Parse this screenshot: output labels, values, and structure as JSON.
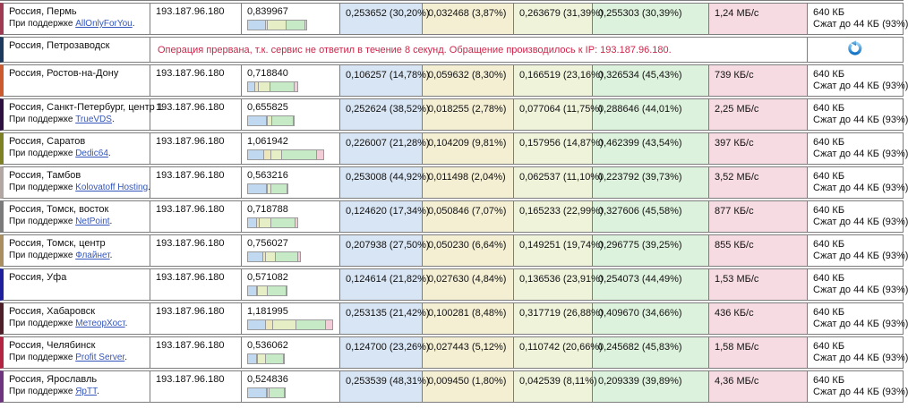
{
  "labels": {
    "support_prefix": "При поддержке",
    "support_suffix": "."
  },
  "colors": {
    "phase_connect_bg": "#d8e5f4",
    "phase_send_bg": "#f4efd2",
    "phase_wait_bg": "#eef3da",
    "phase_download_bg": "#ddf2dc",
    "speed_bg": "#f6dbe2",
    "error_text": "#cf2449",
    "link": "#3355bb",
    "border": "#7d7d7d"
  },
  "table": {
    "rows": [
      {
        "type": "normal",
        "location": "Россия, Пермь",
        "support_link": "AllOnlyForYou",
        "stripe_color": "#9e3a52",
        "ip": "193.187.96.180",
        "total_time": "0,839967",
        "phases": [
          "0,253652 (30,20%)",
          "0,032468 (3,87%)",
          "0,263679 (31,39%)",
          "0,255303 (30,39%)"
        ],
        "speed": "1,24 МБ/с",
        "size": "640 КБ",
        "size_note": "Сжат до 44 КБ (93%)"
      },
      {
        "type": "error",
        "location": "Россия, Петрозаводск",
        "stripe_color": "#1c3a5e",
        "error_text": "Операция прервана, т.к. сервис не ответил в течение 8 секунд. Обращение производилось к IP: 193.187.96.180.",
        "action_icon": "reload"
      },
      {
        "type": "normal",
        "location": "Россия, Ростов-на-Дону",
        "support_link": "",
        "stripe_color": "#cb5a2e",
        "ip": "193.187.96.180",
        "total_time": "0,718840",
        "phases": [
          "0,106257 (14,78%)",
          "0,059632 (8,30%)",
          "0,166519 (23,16%)",
          "0,326534 (45,43%)"
        ],
        "speed": "739 КБ/с",
        "size": "640 КБ",
        "size_note": "Сжат до 44 КБ (93%)"
      },
      {
        "type": "normal",
        "location": "Россия, Санкт-Петербург, центр 1",
        "support_link": "TrueVDS",
        "stripe_color": "#2e1040",
        "ip": "193.187.96.180",
        "total_time": "0,655825",
        "phases": [
          "0,252624 (38,52%)",
          "0,018255 (2,78%)",
          "0,077064 (11,75%)",
          "0,288646 (44,01%)"
        ],
        "speed": "2,25 МБ/с",
        "size": "640 КБ",
        "size_note": "Сжат до 44 КБ (93%)"
      },
      {
        "type": "normal",
        "location": "Россия, Саратов",
        "support_link": "Dedic64",
        "stripe_color": "#7e8026",
        "ip": "193.187.96.180",
        "total_time": "1,061942",
        "phases": [
          "0,226007 (21,28%)",
          "0,104209 (9,81%)",
          "0,157956 (14,87%)",
          "0,462399 (43,54%)"
        ],
        "speed": "397 КБ/с",
        "size": "640 КБ",
        "size_note": "Сжат до 44 КБ (93%)"
      },
      {
        "type": "normal",
        "location": "Россия, Тамбов",
        "support_link": "Kolovatoff Hosting",
        "stripe_color": "#b3a7a3",
        "ip": "193.187.96.180",
        "total_time": "0,563216",
        "phases": [
          "0,253008 (44,92%)",
          "0,011498 (2,04%)",
          "0,062537 (11,10%)",
          "0,223792 (39,73%)"
        ],
        "speed": "3,52 МБ/с",
        "size": "640 КБ",
        "size_note": "Сжат до 44 КБ (93%)"
      },
      {
        "type": "normal",
        "location": "Россия, Томск, восток",
        "support_link": "NetPoint",
        "stripe_color": "#7b7b7b",
        "ip": "193.187.96.180",
        "total_time": "0,718788",
        "phases": [
          "0,124620 (17,34%)",
          "0,050846 (7,07%)",
          "0,165233 (22,99%)",
          "0,327606 (45,58%)"
        ],
        "speed": "877 КБ/с",
        "size": "640 КБ",
        "size_note": "Сжат до 44 КБ (93%)"
      },
      {
        "type": "normal",
        "location": "Россия, Томск, центр",
        "support_link": "Флайнет",
        "stripe_color": "#a98f5f",
        "ip": "193.187.96.180",
        "total_time": "0,756027",
        "phases": [
          "0,207938 (27,50%)",
          "0,050230 (6,64%)",
          "0,149251 (19,74%)",
          "0,296775 (39,25%)"
        ],
        "speed": "855 КБ/с",
        "size": "640 КБ",
        "size_note": "Сжат до 44 КБ (93%)"
      },
      {
        "type": "normal",
        "location": "Россия, Уфа",
        "support_link": "",
        "stripe_color": "#1f1f9e",
        "ip": "193.187.96.180",
        "total_time": "0,571082",
        "phases": [
          "0,124614 (21,82%)",
          "0,027630 (4,84%)",
          "0,136536 (23,91%)",
          "0,254073 (44,49%)"
        ],
        "speed": "1,53 МБ/с",
        "size": "640 КБ",
        "size_note": "Сжат до 44 КБ (93%)"
      },
      {
        "type": "normal",
        "location": "Россия, Хабаровск",
        "support_link": "МетеорХост",
        "stripe_color": "#4e1f28",
        "ip": "193.187.96.180",
        "total_time": "1,181995",
        "phases": [
          "0,253135 (21,42%)",
          "0,100281 (8,48%)",
          "0,317719 (26,88%)",
          "0,409670 (34,66%)"
        ],
        "speed": "436 КБ/с",
        "size": "640 КБ",
        "size_note": "Сжат до 44 КБ (93%)"
      },
      {
        "type": "normal",
        "location": "Россия, Челябинск",
        "support_link": "Profit Server",
        "stripe_color": "#b22442",
        "ip": "193.187.96.180",
        "total_time": "0,536062",
        "phases": [
          "0,124700 (23,26%)",
          "0,027443 (5,12%)",
          "0,110742 (20,66%)",
          "0,245682 (45,83%)"
        ],
        "speed": "1,58 МБ/с",
        "size": "640 КБ",
        "size_note": "Сжат до 44 КБ (93%)"
      },
      {
        "type": "normal",
        "location": "Россия, Ярославль",
        "support_link": "ЯрТТ",
        "stripe_color": "#6e3480",
        "ip": "193.187.96.180",
        "total_time": "0,524836",
        "phases": [
          "0,253539 (48,31%)",
          "0,009450 (1,80%)",
          "0,042539 (8,11%)",
          "0,209339 (39,89%)"
        ],
        "speed": "4,36 МБ/с",
        "size": "640 КБ",
        "size_note": "Сжат до 44 КБ (93%)"
      }
    ]
  }
}
